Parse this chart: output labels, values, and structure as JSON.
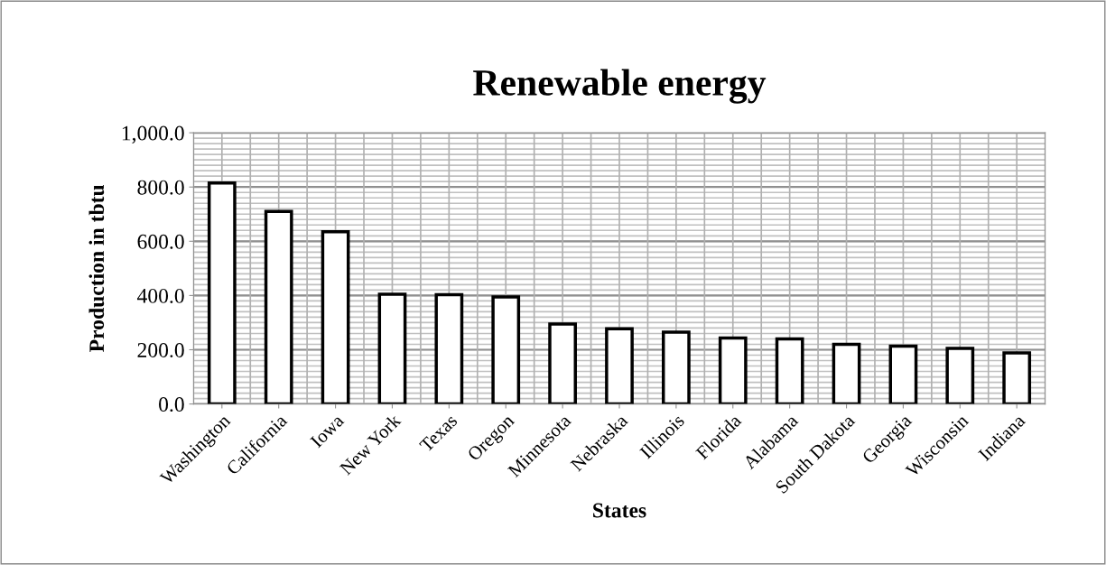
{
  "chart_data": {
    "type": "bar",
    "title": "Renewable energy",
    "xlabel": "States",
    "ylabel": "Production in tbtu",
    "categories": [
      "Washington",
      "California",
      "Iowa",
      "New York",
      "Texas",
      "Oregon",
      "Minnesota",
      "Nebraska",
      "Illinois",
      "Florida",
      "Alabama",
      "South Dakota",
      "Georgia",
      "Wisconsin",
      "Indiana"
    ],
    "values": [
      815,
      710,
      635,
      405,
      403,
      395,
      295,
      277,
      265,
      243,
      240,
      220,
      213,
      205,
      188
    ],
    "color": "#ffffff",
    "ylim": [
      0,
      1000
    ],
    "yticks": [
      {
        "value": 0,
        "label": "0.0"
      },
      {
        "value": 200,
        "label": "200.0"
      },
      {
        "value": 400,
        "label": "400.0"
      },
      {
        "value": 600,
        "label": "600.0"
      },
      {
        "value": 800,
        "label": "800.0"
      },
      {
        "value": 1000,
        "label": "1,000.0"
      }
    ],
    "grid": true,
    "legend": false
  }
}
